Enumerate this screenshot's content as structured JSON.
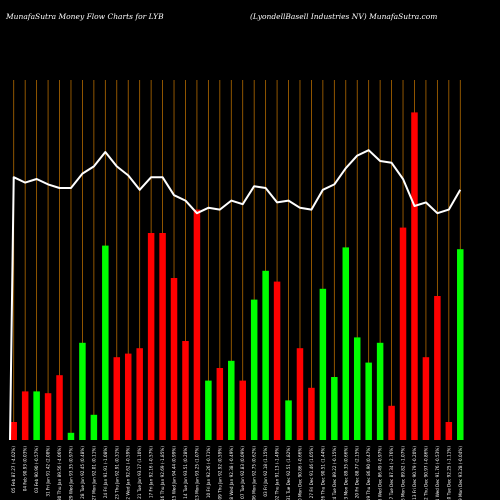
{
  "header": {
    "left": "MunafaSutra  Money Flow  Charts for LYB",
    "right": "(LyondellBasell Industries NV) MunafaSutra.com"
  },
  "colors": {
    "background": "#000000",
    "up": "#00ff00",
    "down": "#ff0000",
    "line": "#ffffff",
    "grid": "#b36a00"
  },
  "chart_data": {
    "type": "bar",
    "ylim": [
      0,
      100
    ],
    "line_ylim": [
      0,
      100
    ],
    "bars": [
      {
        "label": "05 Feb 87.27 (-4.02%)",
        "value": 5,
        "dir": "down"
      },
      {
        "label": "04 Feb 90.93 (0.03%)",
        "value": 13.5,
        "dir": "down"
      },
      {
        "label": "03 Feb 90.90 (-0.57%)",
        "value": 13.5,
        "dir": "up"
      },
      {
        "label": "31 Fri Jan 91.42 (2.08%)",
        "value": 13,
        "dir": "down"
      },
      {
        "label": "30 Thu Jan 89.56 (-4.06%)",
        "value": 18,
        "dir": "down"
      },
      {
        "label": "29 Wed Jan 93.35 (0.97%)",
        "value": 2,
        "dir": "up"
      },
      {
        "label": "28 Tue Jan 92.45 (0.48%)",
        "value": 27,
        "dir": "up"
      },
      {
        "label": "27 Mon Jan 92.01 (0.11%)",
        "value": 7,
        "dir": "up"
      },
      {
        "label": "24 Fri Jan 91.91 (-1.08%)",
        "value": 54,
        "dir": "up"
      },
      {
        "label": "23 Thu Jan 92.91 (0.31%)",
        "value": 23,
        "dir": "down"
      },
      {
        "label": "22 Wed Jan 92.62 (-0.59%)",
        "value": 24,
        "dir": "down"
      },
      {
        "label": "21 Tue Jan 93.17 (1.10%)",
        "value": 25.5,
        "dir": "down"
      },
      {
        "label": "17 Fri Jan 92.16 (-0.57%)",
        "value": 57.5,
        "dir": "down"
      },
      {
        "label": "16 Thu Jan 92.69 (-1.85%)",
        "value": 57.5,
        "dir": "down"
      },
      {
        "label": "15 Wed Jan 94.44 (0.99%)",
        "value": 45,
        "dir": "down"
      },
      {
        "label": "14 Tue Jan 93.51 (0.28%)",
        "value": 27.5,
        "dir": "down"
      },
      {
        "label": "13 Mon Jan 93.25 (1.07%)",
        "value": 64,
        "dir": "down"
      },
      {
        "label": "10 Fri Jan 92.26 (-0.71%)",
        "value": 16.5,
        "dir": "up"
      },
      {
        "label": "09 Thu Jan 92.92 (0.59%)",
        "value": 20,
        "dir": "down"
      },
      {
        "label": "08 Wed Jan 92.38 (-0.49%)",
        "value": 22,
        "dir": "up"
      },
      {
        "label": "07 Tue Jan 92.83 (0.09%)",
        "value": 16.5,
        "dir": "down"
      },
      {
        "label": "06 Mon Jan 92.75 (0.62%)",
        "value": 39,
        "dir": "up"
      },
      {
        "label": "03 Fri Jan 92.18 (1.15%)",
        "value": 47,
        "dir": "up"
      },
      {
        "label": "02 Thu Jan 91.13 (-1.49%)",
        "value": 44,
        "dir": "down"
      },
      {
        "label": "31 Tue Dec 92.51 (1.82%)",
        "value": 11,
        "dir": "up"
      },
      {
        "label": "30 Mon Dec 90.86 (-0.66%)",
        "value": 25.5,
        "dir": "down"
      },
      {
        "label": "27 Fri Dec 91.46 (1.05%)",
        "value": 14.5,
        "dir": "down"
      },
      {
        "label": "26 Thu Dec 90.51 (1.44%)",
        "value": 42,
        "dir": "up"
      },
      {
        "label": "24 Tue Dec 89.22 (-0.15%)",
        "value": 17.5,
        "dir": "up"
      },
      {
        "label": "23 Mon Dec 89.35 (0.66%)",
        "value": 53.5,
        "dir": "up"
      },
      {
        "label": "20 Fri Dec 88.77 (2.15%)",
        "value": 28.5,
        "dir": "up"
      },
      {
        "label": "19 Thu Dec 86.90 (0.47%)",
        "value": 21.5,
        "dir": "up"
      },
      {
        "label": "18 Wed Dec 86.49 (-0.97%)",
        "value": 27,
        "dir": "up"
      },
      {
        "label": "17 Tue Dec 87.34 (-2.76%)",
        "value": 9.5,
        "dir": "down"
      },
      {
        "label": "16 Mon Dec 89.82 (-1.07%)",
        "value": 59,
        "dir": "down"
      },
      {
        "label": "13 Fri Dec 90.79 (-0.20%)",
        "value": 91,
        "dir": "down"
      },
      {
        "label": "12 Thu Dec 90.97 (-0.86%)",
        "value": 23,
        "dir": "down"
      },
      {
        "label": "11 Wed Dec 91.76 (-0.53%)",
        "value": 40,
        "dir": "down"
      },
      {
        "label": "10 Tue Dec 92.25 (-1.11%)",
        "value": 5,
        "dir": "down"
      },
      {
        "label": "09 Mon Dec 93.28 (-0.04%)",
        "value": 53,
        "dir": "up"
      }
    ],
    "line": [
      73,
      71.5,
      72.5,
      71,
      70,
      70,
      74,
      76,
      80,
      76,
      73.5,
      69.5,
      73,
      73,
      68,
      66.5,
      63,
      64.5,
      64,
      66.5,
      65.5,
      70.5,
      70,
      66,
      66.5,
      64.5,
      64,
      69.5,
      71,
      75.5,
      79,
      80.5,
      77.5,
      77,
      72.5,
      65,
      66,
      63,
      64,
      69.5
    ]
  }
}
